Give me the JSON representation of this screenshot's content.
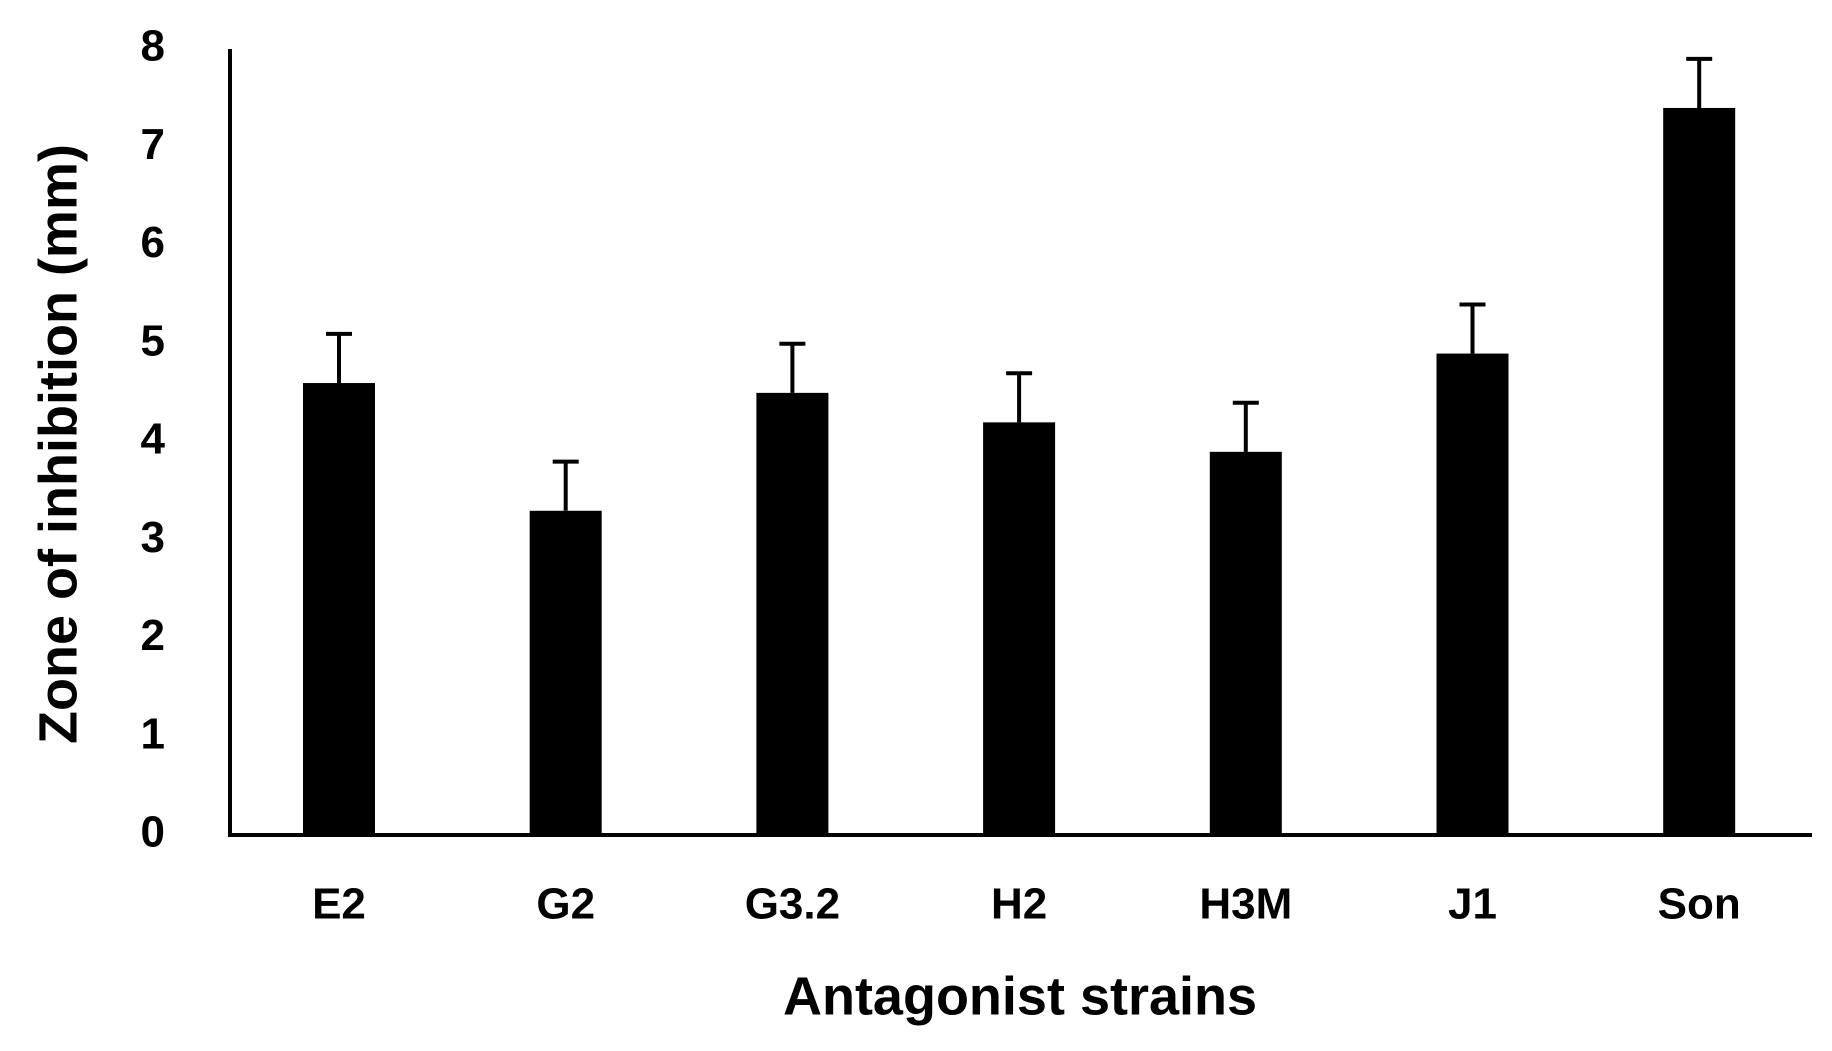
{
  "chart_data": {
    "type": "bar",
    "x_label": "Antagonist strains",
    "y_label": "Zone of inhibition (mm)",
    "categories": [
      "E2",
      "G2",
      "G3.2",
      "H2",
      "H3M",
      "J1",
      "Son"
    ],
    "values": [
      4.6,
      3.3,
      4.5,
      4.2,
      3.9,
      4.9,
      7.4
    ],
    "errors": [
      0.5,
      0.5,
      0.5,
      0.5,
      0.5,
      0.5,
      0.5
    ],
    "color": "#000000",
    "ylim": [
      0,
      8
    ],
    "yticks": [
      0,
      1,
      2,
      3,
      4,
      5,
      6,
      7,
      8
    ],
    "grid": false
  }
}
